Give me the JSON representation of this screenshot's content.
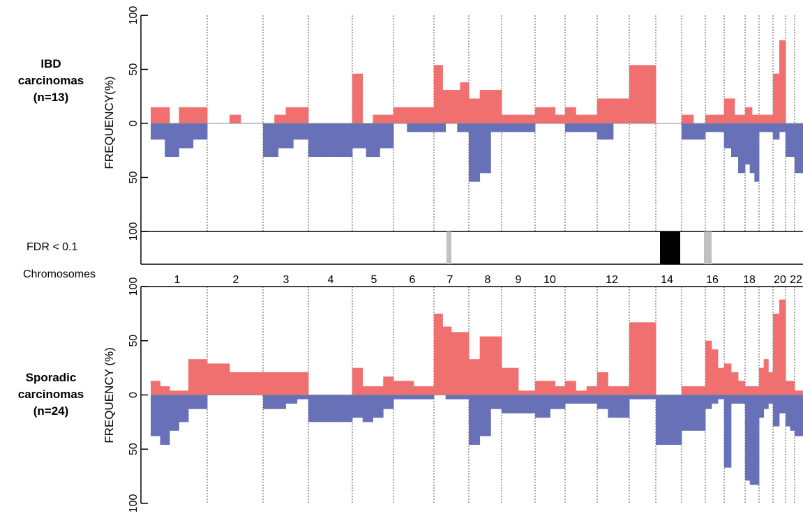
{
  "colors": {
    "gain": "#f07070",
    "loss": "#6870b8",
    "fdr_significant": "#000000",
    "fdr_suggestive": "#c0c0c0",
    "axis": "#000000",
    "separator": "#555555"
  },
  "labels": {
    "top_panel": [
      "IBD",
      "carcinomas",
      "(n=13)"
    ],
    "bottom_panel": [
      "Sporadic",
      "carcinomas",
      "(n=24)"
    ],
    "top_ylabel": "FREQUENCY(%)",
    "bottom_ylabel": "FREQUENCY (%)",
    "fdr_label": "FDR < 0.1",
    "chromosomes_label": "Chromosomes"
  },
  "chart_data": [
    {
      "type": "area",
      "panel": "IBD carcinomas (n=13)",
      "ylabel": "FREQUENCY(%)",
      "ylim": [
        -100,
        100
      ],
      "yticks": [
        100,
        50,
        0,
        50,
        100
      ],
      "x_axis": "Chromosomes",
      "chromosome_labels": [
        "1",
        "2",
        "3",
        "4",
        "5",
        "6",
        "7",
        "8",
        "9",
        "10",
        "12",
        "14",
        "16",
        "18",
        "20",
        "22"
      ],
      "series": [
        {
          "name": "gain",
          "segments": [
            {
              "chr": "1",
              "values": [
                15,
                15,
                0,
                15,
                15,
                15
              ]
            },
            {
              "chr": "2",
              "values": [
                0,
                0,
                8,
                0,
                0
              ]
            },
            {
              "chr": "3",
              "values": [
                0,
                8,
                15,
                15
              ]
            },
            {
              "chr": "4",
              "values": [
                0,
                0,
                0
              ]
            },
            {
              "chr": "5",
              "values": [
                46,
                0,
                8,
                8
              ]
            },
            {
              "chr": "6",
              "values": [
                15,
                15,
                15
              ]
            },
            {
              "chr": "7",
              "values": [
                54,
                31,
                31,
                38
              ]
            },
            {
              "chr": "8",
              "values": [
                23,
                31,
                31
              ]
            },
            {
              "chr": "9",
              "values": [
                8,
                8
              ]
            },
            {
              "chr": "10",
              "values": [
                15,
                15,
                8
              ]
            },
            {
              "chr": "11",
              "values": [
                15,
                8,
                8
              ]
            },
            {
              "chr": "12",
              "values": [
                23,
                23
              ]
            },
            {
              "chr": "13",
              "values": [
                54,
                54
              ]
            },
            {
              "chr": "14",
              "values": [
                0,
                0
              ]
            },
            {
              "chr": "15",
              "values": [
                8,
                0
              ]
            },
            {
              "chr": "16",
              "values": [
                8,
                8
              ]
            },
            {
              "chr": "17",
              "values": [
                23,
                8
              ]
            },
            {
              "chr": "18",
              "values": [
                15,
                8
              ]
            },
            {
              "chr": "19",
              "values": [
                8,
                8
              ]
            },
            {
              "chr": "20",
              "values": [
                46,
                77
              ]
            },
            {
              "chr": "21",
              "values": [
                0
              ]
            },
            {
              "chr": "22",
              "values": [
                0
              ]
            }
          ]
        },
        {
          "name": "loss",
          "segments": [
            {
              "chr": "1",
              "values": [
                -15,
                -31,
                -23,
                -15
              ]
            },
            {
              "chr": "2",
              "values": [
                0,
                0,
                0
              ]
            },
            {
              "chr": "3",
              "values": [
                -31,
                -23,
                -15
              ]
            },
            {
              "chr": "4",
              "values": [
                -31,
                -31,
                -31
              ]
            },
            {
              "chr": "5",
              "values": [
                -23,
                -31,
                -23
              ]
            },
            {
              "chr": "6",
              "values": [
                0,
                -8,
                -8
              ]
            },
            {
              "chr": "7",
              "values": [
                -8,
                0,
                -8
              ]
            },
            {
              "chr": "8",
              "values": [
                -54,
                -46,
                -8
              ]
            },
            {
              "chr": "9",
              "values": [
                -8,
                -8
              ]
            },
            {
              "chr": "10",
              "values": [
                0,
                0
              ]
            },
            {
              "chr": "11",
              "values": [
                -8,
                -8,
                -8
              ]
            },
            {
              "chr": "12",
              "values": [
                -15,
                0
              ]
            },
            {
              "chr": "13",
              "values": [
                0,
                0
              ]
            },
            {
              "chr": "14",
              "values": [
                0,
                0
              ]
            },
            {
              "chr": "15",
              "values": [
                -15,
                -15
              ]
            },
            {
              "chr": "16",
              "values": [
                -8,
                -8
              ]
            },
            {
              "chr": "17",
              "values": [
                -23,
                -31,
                -46
              ]
            },
            {
              "chr": "18",
              "values": [
                -38,
                -46,
                -54
              ]
            },
            {
              "chr": "19",
              "values": [
                -8,
                -8
              ]
            },
            {
              "chr": "20",
              "values": [
                -15,
                -8
              ]
            },
            {
              "chr": "21",
              "values": [
                -31,
                -31
              ]
            },
            {
              "chr": "22",
              "values": [
                -46
              ]
            }
          ]
        }
      ]
    },
    {
      "type": "heatmap",
      "panel": "FDR < 0.1",
      "series": [
        {
          "name": "significant",
          "chr": "14"
        },
        {
          "name": "suggestive",
          "chr": "7"
        },
        {
          "name": "suggestive",
          "chr": "16"
        }
      ]
    },
    {
      "type": "area",
      "panel": "Sporadic carcinomas (n=24)",
      "ylabel": "FREQUENCY (%)",
      "ylim": [
        -100,
        100
      ],
      "yticks": [
        100,
        50,
        0,
        50,
        100
      ],
      "x_axis": "Chromosomes",
      "chromosome_labels": [
        "1",
        "2",
        "3",
        "4",
        "5",
        "6",
        "7",
        "8",
        "9",
        "10",
        "12",
        "14",
        "16",
        "18",
        "20",
        "22"
      ],
      "series": [
        {
          "name": "gain",
          "segments": [
            {
              "chr": "1",
              "values": [
                13,
                8,
                4,
                4,
                33,
                33
              ]
            },
            {
              "chr": "2",
              "values": [
                29,
                29,
                21,
                21,
                21
              ]
            },
            {
              "chr": "3",
              "values": [
                21,
                21,
                21,
                21
              ]
            },
            {
              "chr": "4",
              "values": [
                0,
                0,
                0
              ]
            },
            {
              "chr": "5",
              "values": [
                25,
                8,
                8,
                17
              ]
            },
            {
              "chr": "6",
              "values": [
                13,
                13,
                8,
                8
              ]
            },
            {
              "chr": "7",
              "values": [
                75,
                63,
                58,
                58
              ]
            },
            {
              "chr": "8",
              "values": [
                33,
                54,
                54
              ]
            },
            {
              "chr": "9",
              "values": [
                25,
                4
              ]
            },
            {
              "chr": "10",
              "values": [
                13,
                13,
                8
              ]
            },
            {
              "chr": "11",
              "values": [
                13,
                4,
                8
              ]
            },
            {
              "chr": "12",
              "values": [
                21,
                8,
                8
              ]
            },
            {
              "chr": "13",
              "values": [
                67,
                67
              ]
            },
            {
              "chr": "14",
              "values": [
                0,
                0
              ]
            },
            {
              "chr": "15",
              "values": [
                8,
                8
              ]
            },
            {
              "chr": "16",
              "values": [
                50,
                42,
                25
              ]
            },
            {
              "chr": "17",
              "values": [
                29,
                21,
                13
              ]
            },
            {
              "chr": "18",
              "values": [
                8,
                8
              ]
            },
            {
              "chr": "19",
              "values": [
                25,
                33,
                21
              ]
            },
            {
              "chr": "20",
              "values": [
                75,
                88
              ]
            },
            {
              "chr": "21",
              "values": [
                13,
                13
              ]
            },
            {
              "chr": "22",
              "values": [
                4
              ]
            }
          ]
        },
        {
          "name": "loss",
          "segments": [
            {
              "chr": "1",
              "values": [
                -38,
                -46,
                -33,
                -25,
                -13,
                -13
              ]
            },
            {
              "chr": "2",
              "values": [
                0,
                0,
                0,
                0
              ]
            },
            {
              "chr": "3",
              "values": [
                -13,
                -13,
                -8,
                -4
              ]
            },
            {
              "chr": "4",
              "values": [
                -25,
                -25,
                -25
              ]
            },
            {
              "chr": "5",
              "values": [
                -21,
                -25,
                -21,
                -13
              ]
            },
            {
              "chr": "6",
              "values": [
                -4,
                -4,
                -4
              ]
            },
            {
              "chr": "7",
              "values": [
                0,
                -4,
                -4
              ]
            },
            {
              "chr": "8",
              "values": [
                -46,
                -38,
                -13
              ]
            },
            {
              "chr": "9",
              "values": [
                -17,
                -17
              ]
            },
            {
              "chr": "10",
              "values": [
                -21,
                -13
              ]
            },
            {
              "chr": "11",
              "values": [
                -8,
                -8,
                -8
              ]
            },
            {
              "chr": "12",
              "values": [
                -13,
                -21,
                -21
              ]
            },
            {
              "chr": "13",
              "values": [
                -4,
                -4
              ]
            },
            {
              "chr": "14",
              "values": [
                -46,
                -46
              ]
            },
            {
              "chr": "15",
              "values": [
                -33,
                -33
              ]
            },
            {
              "chr": "16",
              "values": [
                -13,
                -8,
                -4
              ]
            },
            {
              "chr": "17",
              "values": [
                -67,
                -8,
                -8
              ]
            },
            {
              "chr": "18",
              "values": [
                -79,
                -83,
                -83
              ]
            },
            {
              "chr": "19",
              "values": [
                -21,
                -13,
                -8
              ]
            },
            {
              "chr": "20",
              "values": [
                -29,
                -17
              ]
            },
            {
              "chr": "21",
              "values": [
                -29,
                -33
              ]
            },
            {
              "chr": "22",
              "values": [
                -38
              ]
            }
          ]
        }
      ]
    }
  ]
}
